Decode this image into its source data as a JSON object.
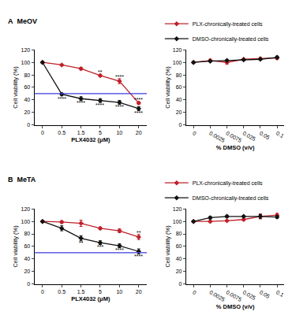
{
  "chart_data": [
    {
      "type": "line",
      "panel": "A",
      "title": "MeOV",
      "x_label": "PLX4032 (μM)",
      "y_label": "Cell viability (%)",
      "categories": [
        "0",
        "0.5",
        "1.5",
        "5",
        "10",
        "20"
      ],
      "ylim": [
        0,
        120
      ],
      "yticks": [
        0,
        20,
        40,
        60,
        80,
        100,
        120
      ],
      "legend": "top right",
      "marker": "diamond",
      "reference_line": {
        "value": 50,
        "color": "#3b3bdc"
      },
      "series": [
        {
          "name": "PLX-chronically-treated cells",
          "color": "#c0202a",
          "values": [
            100,
            96,
            90,
            79,
            70,
            35
          ],
          "errors": [
            1,
            1,
            2,
            2,
            4,
            2
          ]
        },
        {
          "name": "DMSO-chronically-treated cells",
          "color": "#111111",
          "values": [
            100,
            49,
            42,
            39,
            36,
            26
          ],
          "errors": [
            1,
            2,
            3,
            3,
            3,
            3
          ]
        }
      ],
      "annotations": [
        {
          "text": "**",
          "x": "5",
          "y": 84
        },
        {
          "text": "****",
          "x": "10",
          "y": 77
        },
        {
          "text": "****",
          "x": "20",
          "y": 40
        },
        {
          "text": "****",
          "x": "0.5",
          "y": 42
        },
        {
          "text": "****",
          "x": "1.5",
          "y": 35
        },
        {
          "text": "****",
          "x": "5",
          "y": 32
        },
        {
          "text": "****",
          "x": "10",
          "y": 29
        },
        {
          "text": "****",
          "x": "20",
          "y": 19
        }
      ]
    },
    {
      "type": "line",
      "x_label": "% DMSO (v/v)",
      "y_label": "Cell viability (%)",
      "categories": [
        "0",
        "0.0025",
        "0.0075",
        "0.025",
        "0.05",
        "0.1"
      ],
      "ylim": [
        0,
        120
      ],
      "yticks": [
        0,
        20,
        40,
        60,
        80,
        100,
        120
      ],
      "marker": "diamond",
      "series": [
        {
          "name": "PLX-chronically-treated cells",
          "color": "#c0202a",
          "values": [
            100,
            103,
            100,
            105,
            106,
            107
          ],
          "errors": [
            1,
            2,
            3,
            1,
            2,
            2
          ]
        },
        {
          "name": "DMSO-chronically-treated cells",
          "color": "#111111",
          "values": [
            100,
            102,
            103,
            104,
            105,
            108
          ],
          "errors": [
            1,
            1,
            1,
            1,
            1,
            2
          ]
        }
      ]
    },
    {
      "type": "line",
      "panel": "B",
      "title": "MeTA",
      "x_label": "PLX4032 (μM)",
      "y_label": "Cell viability (%)",
      "categories": [
        "0",
        "0.5",
        "1.5",
        "5",
        "10",
        "20"
      ],
      "ylim": [
        0,
        120
      ],
      "yticks": [
        0,
        20,
        40,
        60,
        80,
        100,
        120
      ],
      "legend": "top right",
      "marker": "diamond",
      "reference_line": {
        "value": 50,
        "color": "#3b3bdc"
      },
      "series": [
        {
          "name": "PLX-chronically-treated cells",
          "color": "#c0202a",
          "values": [
            100,
            99,
            97,
            89,
            85,
            75
          ],
          "errors": [
            1,
            2,
            5,
            2,
            3,
            4
          ]
        },
        {
          "name": "DMSO-chronically-treated cells",
          "color": "#111111",
          "values": [
            100,
            89,
            73,
            66,
            61,
            52
          ],
          "errors": [
            1,
            4,
            4,
            3,
            3,
            4
          ]
        }
      ],
      "annotations": [
        {
          "text": "**",
          "x": "20",
          "y": 82
        },
        {
          "text": "**",
          "x": "1.5",
          "y": 65
        },
        {
          "text": "***",
          "x": "5",
          "y": 59
        },
        {
          "text": "****",
          "x": "10",
          "y": 54
        },
        {
          "text": "****",
          "x": "20",
          "y": 44
        }
      ]
    },
    {
      "type": "line",
      "x_label": "% DMSO (v/v)",
      "y_label": "Cell viability (%)",
      "categories": [
        "0",
        "0.0025",
        "0.0075",
        "0.025",
        "0.05",
        "0.1"
      ],
      "ylim": [
        0,
        120
      ],
      "yticks": [
        0,
        20,
        40,
        60,
        80,
        100,
        120
      ],
      "marker": "diamond",
      "series": [
        {
          "name": "PLX-chronically-treated cells",
          "color": "#c0202a",
          "values": [
            100,
            100,
            101,
            103,
            108,
            110
          ],
          "errors": [
            1,
            1,
            1,
            2,
            4,
            3
          ]
        },
        {
          "name": "DMSO-chronically-treated cells",
          "color": "#111111",
          "values": [
            100,
            106,
            108,
            108,
            108,
            107
          ],
          "errors": [
            1,
            2,
            2,
            1,
            3,
            2
          ]
        }
      ]
    }
  ]
}
